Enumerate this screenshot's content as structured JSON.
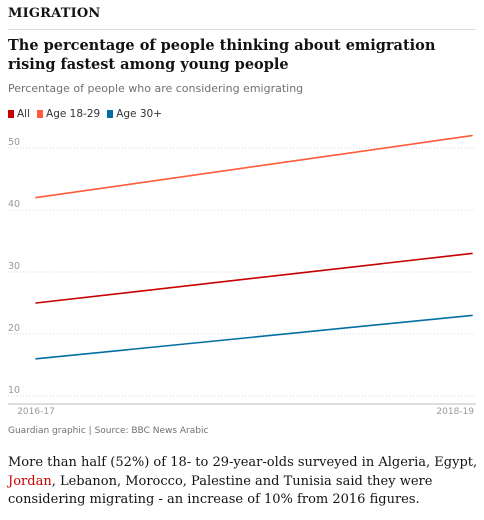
{
  "kicker": "MIGRATION",
  "colors": {
    "all": "#c70000",
    "age_18_29": "#ff5b3a",
    "age_30_plus": "#056da1",
    "grid": "#d8d8d8"
  },
  "chart_data": {
    "type": "line",
    "title": "The percentage of people thinking about emigration rising fastest among young people",
    "subtitle": "Percentage of people who are considering emigrating",
    "x": [
      "2016-17",
      "2018-19"
    ],
    "series": [
      {
        "name": "All",
        "values": [
          25,
          33
        ]
      },
      {
        "name": "Age 18-29",
        "values": [
          42,
          52
        ]
      },
      {
        "name": "Age 30+",
        "values": [
          16,
          23
        ]
      }
    ],
    "yticks": [
      10,
      20,
      30,
      40,
      50
    ],
    "ylim": [
      10,
      52
    ],
    "legend": "top-left",
    "grid": true,
    "source": "Guardian graphic | Source: BBC News Arabic"
  },
  "article": {
    "before_link": "More than half (52%) of 18- to 29-year-olds surveyed in Algeria, Egypt, ",
    "link": "Jordan",
    "after_link": ", Lebanon, Morocco, Palestine and Tunisia said they were considering migrating - an increase of 10% from 2016 figures."
  }
}
